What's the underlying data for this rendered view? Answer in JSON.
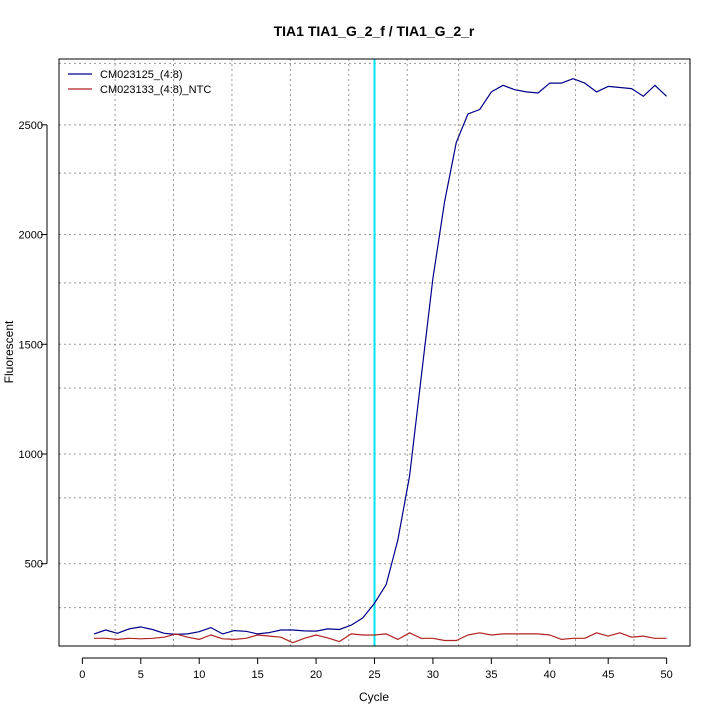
{
  "chart_data": {
    "type": "line",
    "title": "TIA1  TIA1_G_2_f / TIA1_G_2_r",
    "xlabel": "Cycle",
    "ylabel": "Fluorescent",
    "xlim": [
      -2,
      52
    ],
    "ylim": [
      125,
      2800
    ],
    "x_ticks": [
      0,
      5,
      10,
      15,
      20,
      25,
      30,
      35,
      40,
      45,
      50
    ],
    "x_tick_labels": [
      "0",
      "5",
      "10",
      "15",
      "20",
      "25",
      "30",
      "35",
      "40",
      "45",
      "50"
    ],
    "y_ticks": [
      500,
      1000,
      1500,
      2000,
      2500
    ],
    "y_tick_labels": [
      "500",
      "1000",
      "1500",
      "2000",
      "2500"
    ],
    "x_grid": [
      2.8,
      7.8,
      12.8,
      17.8,
      22.8,
      27.8,
      32.2,
      37.2,
      42.2,
      47.2
    ],
    "y_grid": [
      300,
      500,
      800,
      1000,
      1300,
      1500,
      1780,
      2000,
      2280,
      2500,
      2780
    ],
    "threshold_cycle": 25,
    "threshold_color": "#00e5ee",
    "legend_position": "top-left",
    "x": [
      1,
      2,
      3,
      4,
      5,
      6,
      7,
      8,
      9,
      10,
      11,
      12,
      13,
      14,
      15,
      16,
      17,
      18,
      19,
      20,
      21,
      22,
      23,
      24,
      25,
      26,
      27,
      28,
      29,
      30,
      31,
      32,
      33,
      34,
      35,
      36,
      37,
      38,
      39,
      40,
      41,
      42,
      43,
      44,
      45,
      46,
      47,
      48,
      49,
      50
    ],
    "series": [
      {
        "name": "CM023125_(4:8)",
        "color": "#00008b",
        "values": [
          180,
          198,
          183,
          203,
          212,
          200,
          183,
          178,
          180,
          190,
          209,
          180,
          195,
          192,
          180,
          186,
          198,
          198,
          194,
          193,
          203,
          200,
          220,
          253,
          320,
          405,
          610,
          900,
          1350,
          1800,
          2150,
          2420,
          2550,
          2570,
          2650,
          2680,
          2660,
          2650,
          2645,
          2690,
          2690,
          2710,
          2690,
          2650,
          2675,
          2670,
          2665,
          2630,
          2680,
          2630
        ]
      },
      {
        "name": "CM023133_(4:8)_NTC",
        "color": "#b22222",
        "values": [
          160,
          160,
          155,
          160,
          158,
          160,
          165,
          180,
          165,
          155,
          175,
          158,
          155,
          160,
          175,
          170,
          165,
          140,
          160,
          175,
          162,
          145,
          180,
          175,
          175,
          180,
          155,
          185,
          160,
          160,
          150,
          150,
          175,
          185,
          175,
          180,
          180,
          180,
          180,
          175,
          155,
          160,
          160,
          185,
          170,
          185,
          165,
          170,
          160,
          160
        ]
      }
    ]
  }
}
